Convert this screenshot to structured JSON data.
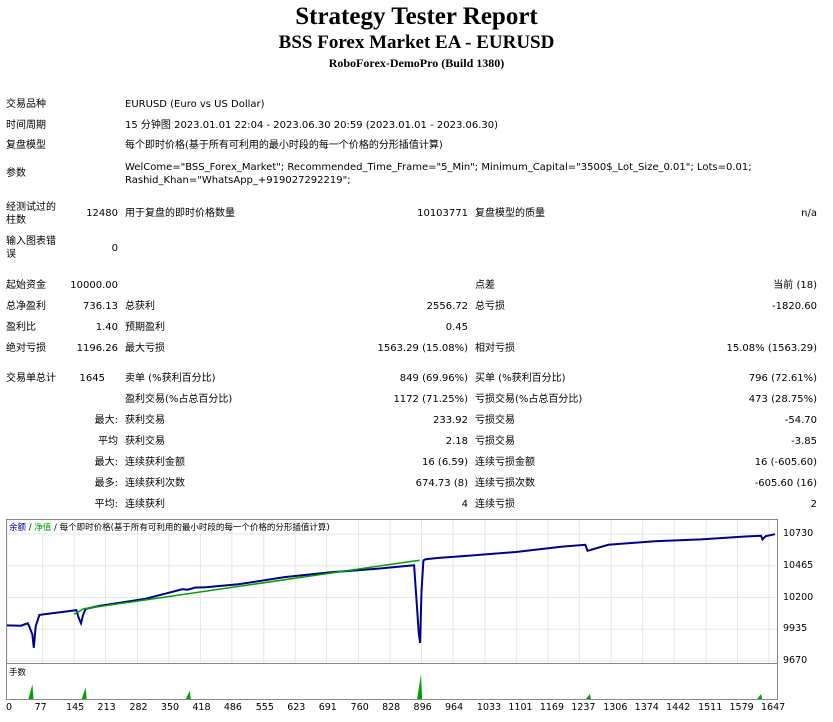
{
  "header": {
    "title": "Strategy Tester Report",
    "subtitle": "BSS Forex Market EA - EURUSD",
    "build": "RoboForex-DemoPro (Build 1380)"
  },
  "info": {
    "symbol_label": "交易品种",
    "symbol_value": "EURUSD (Euro vs US Dollar)",
    "period_label": "时间周期",
    "period_value": "15 分钟图 2023.01.01 22:04 - 2023.06.30 20:59 (2023.01.01 - 2023.06.30)",
    "model_label": "复盘模型",
    "model_value": "每个即时价格(基于所有可利用的最小时段的每一个价格的分形插值计算)",
    "params_label": "参数",
    "params_line1": "WelCome=\"BSS_Forex_Market\"; Recommended_Time_Frame=\"5_Min\"; Minimum_Capital=\"3500$_Lot_Size_0.01\"; Lots=0.01;",
    "params_line2": "Rashid_Khan=\"WhatsApp_+919027292219\";",
    "bars_label_1": "经测试过的",
    "bars_label_2": "柱数",
    "bars_value": "12480",
    "ticks_label": "用于复盘的即时价格数量",
    "ticks_value": "10103771",
    "quality_label": "复盘模型的质量",
    "quality_value": "n/a",
    "errors_label_1": "输入图表错",
    "errors_label_2": "误",
    "errors_value": "0"
  },
  "stats": {
    "deposit_label": "起始资金",
    "deposit_value": "10000.00",
    "spread_label": "点差",
    "spread_value": "当前 (18)",
    "net_label": "总净盈利",
    "net_value": "736.13",
    "gross_profit_label": "总获利",
    "gross_profit_value": "2556.72",
    "gross_loss_label": "总亏损",
    "gross_loss_value": "-1820.60",
    "pf_label": "盈利比",
    "pf_value": "1.40",
    "ep_label": "预期盈利",
    "ep_value": "0.45",
    "abs_dd_label": "绝对亏损",
    "abs_dd_value": "1196.26",
    "max_dd_label": "最大亏损",
    "max_dd_value": "1563.29 (15.08%)",
    "rel_dd_label": "相对亏损",
    "rel_dd_value": "15.08% (1563.29)",
    "trades_label": "交易单总计",
    "trades_value": "1645",
    "short_label": "卖单 (%获利百分比)",
    "short_value": "849 (69.96%)",
    "long_label": "买单 (%获利百分比)",
    "long_value": "796 (72.61%)",
    "profit_trades_label": "盈利交易(%占总百分比)",
    "profit_trades_value": "1172 (71.25%)",
    "loss_trades_label": "亏损交易(%占总百分比)",
    "loss_trades_value": "473 (28.75%)",
    "largest_prefix": "最大:",
    "largest_profit_label": "获利交易",
    "largest_profit_value": "233.92",
    "largest_loss_label": "亏损交易",
    "largest_loss_value": "-54.70",
    "average_prefix": "平均",
    "avg_profit_label": "获利交易",
    "avg_profit_value": "2.18",
    "avg_loss_label": "亏损交易",
    "avg_loss_value": "-3.85",
    "max_prefix": "最大:",
    "max_cons_wins_label": "连续获利金额",
    "max_cons_wins_value": "16 (6.59)",
    "max_cons_losses_label": "连续亏损金额",
    "max_cons_losses_value": "16 (-605.60)",
    "most_prefix": "最多:",
    "max_cons_profit_label": "连续获利次数",
    "max_cons_profit_value": "674.73 (8)",
    "max_cons_loss_label": "连续亏损次数",
    "max_cons_loss_value": "-605.60 (16)",
    "avg_prefix": "平均:",
    "avg_cons_wins_label": "连续获利",
    "avg_cons_wins_value": "4",
    "avg_cons_losses_label": "连续亏损",
    "avg_cons_losses_value": "2"
  },
  "chart_legend": {
    "balance": "余额",
    "sep1": " / ",
    "equity": "净值",
    "sep2": " / ",
    "ticks": "每个即时价格(基于所有可利用的最小时段的每一个价格的分形插值计算)"
  },
  "volume_label": "手数",
  "colors": {
    "balance_line": "#00008b",
    "equity_line": "#00a000",
    "legend_balance": "#0000c0",
    "legend_equity": "#00a000",
    "volume_bars": "#00a000"
  },
  "chart_data": {
    "type": "line",
    "title": "",
    "ylim": [
      9670,
      10730
    ],
    "y_ticks": [
      "10730",
      "10465",
      "10200",
      "9935",
      "9670"
    ],
    "x_ticks": [
      "0",
      "77",
      "145",
      "213",
      "282",
      "350",
      "418",
      "486",
      "555",
      "623",
      "691",
      "760",
      "828",
      "896",
      "964",
      "1033",
      "1101",
      "1169",
      "1237",
      "1306",
      "1374",
      "1442",
      "1511",
      "1579",
      "1647"
    ],
    "series": [
      {
        "name": "余额",
        "x": [
          0,
          30,
          45,
          48,
          55,
          58,
          62,
          70,
          100,
          140,
          150,
          155,
          160,
          165,
          170,
          200,
          300,
          380,
          390,
          395,
          400,
          406,
          430,
          500,
          600,
          700,
          800,
          880,
          890,
          893,
          896,
          900,
          905,
          930,
          1000,
          1100,
          1200,
          1250,
          1255,
          1300,
          1400,
          1500,
          1600,
          1630,
          1633,
          1640,
          1660
        ],
        "y": [
          9967,
          9965,
          9985,
          9960,
          9890,
          9780,
          9960,
          10055,
          10070,
          10090,
          10095,
          10030,
          9985,
          10060,
          10105,
          10130,
          10190,
          10270,
          10265,
          10270,
          10275,
          10283,
          10285,
          10310,
          10370,
          10410,
          10440,
          10470,
          9900,
          9820,
          10250,
          10510,
          10520,
          10530,
          10550,
          10580,
          10625,
          10640,
          10590,
          10640,
          10670,
          10685,
          10710,
          10715,
          10685,
          10712,
          10728
        ]
      },
      {
        "name": "净值",
        "x": [
          145,
          165,
          880,
          892
        ],
        "y": [
          10060,
          10105,
          10505,
          10510
        ]
      }
    ],
    "volume": {
      "name": "手数",
      "spikes_x": [
        55,
        170,
        395,
        895,
        1260,
        1630
      ],
      "spikes_h": [
        0.45,
        0.35,
        0.25,
        0.75,
        0.15,
        0.15
      ]
    }
  }
}
